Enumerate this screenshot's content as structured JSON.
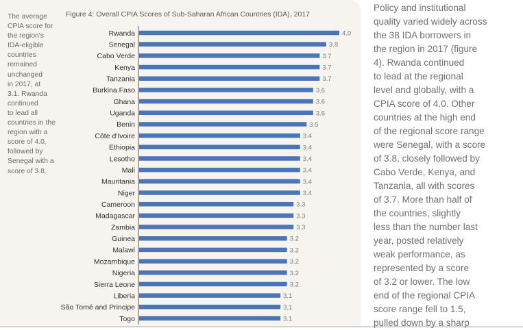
{
  "sidenote": {
    "lines": [
      "The average",
      "CPIA score for",
      "the region's",
      "IDA-eligible",
      "countries",
      "remained",
      "unchanged",
      "in 2017, at",
      "3.1. Rwanda",
      "continued",
      "to lead all",
      "countries in the",
      "region with a",
      "score of 4.0,",
      "followed by",
      "Senegal with a",
      "score of 3.8."
    ]
  },
  "body_text": {
    "lines": [
      "Policy and institutional",
      "quality varied widely across",
      "the 38 IDA borrowers in",
      "the region in 2017 (figure",
      "4). Rwanda continued",
      "to lead at the regional",
      "level and globally, with a",
      "CPIA score of 4.0. Other",
      "countries at the high end",
      "of the regional score range",
      "were Senegal, with a score",
      "of 3.8, closely followed by",
      "Cabo Verde, Kenya, and",
      "Tanzania, all with scores",
      "of 3.7. More than half of",
      "the countries, slightly",
      "less than the number last",
      "year, posted relatively",
      "weak performance, as",
      "represented by a score",
      "of 3.2 or lower. The low",
      "end of the regional CPIA",
      "score range fell to 1.5,",
      "pulled down by a sharp"
    ]
  },
  "colors": {
    "bar": "#4a76b8",
    "panel": "#f7f4ef"
  },
  "chart_data": {
    "type": "bar",
    "orientation": "horizontal",
    "title": "Figure 4: Overall CPIA Scores of Sub-Saharan African Countries (IDA), 2017",
    "xlabel": "",
    "ylabel": "",
    "grid": false,
    "legend": "none",
    "categories": [
      "Rwanda",
      "Senegal",
      "Cabo Verde",
      "Kenya",
      "Tanzania",
      "Burkina Faso",
      "Ghana",
      "Uganda",
      "Benin",
      "Côte d'Ivoire",
      "Ethiopia",
      "Lesotho",
      "Mali",
      "Mauritania",
      "Niger",
      "Cameroon",
      "Madagascar",
      "Zambia",
      "Guinea",
      "Malawi",
      "Mozambique",
      "Nigeria",
      "Sierra Leone",
      "Liberia",
      "São Tomé and Principe",
      "Togo"
    ],
    "values": [
      4.0,
      3.8,
      3.7,
      3.7,
      3.7,
      3.6,
      3.6,
      3.6,
      3.5,
      3.4,
      3.4,
      3.4,
      3.4,
      3.4,
      3.4,
      3.3,
      3.3,
      3.3,
      3.2,
      3.2,
      3.2,
      3.2,
      3.2,
      3.1,
      3.1,
      3.1
    ],
    "value_labels": [
      "4.0",
      "3.8",
      "3.7",
      "3.7",
      "3.7",
      "3.6",
      "3.6",
      "3.6",
      "3.5",
      "3.4",
      "3.4",
      "3.4",
      "3.4",
      "3.4",
      "3.4",
      "3.3",
      "3.3",
      "3.3",
      "3.2",
      "3.2",
      "3.2",
      "3.2",
      "3.2",
      "3.1",
      "3.1",
      "3.1"
    ],
    "xlim": [
      0.93,
      4.0
    ]
  }
}
